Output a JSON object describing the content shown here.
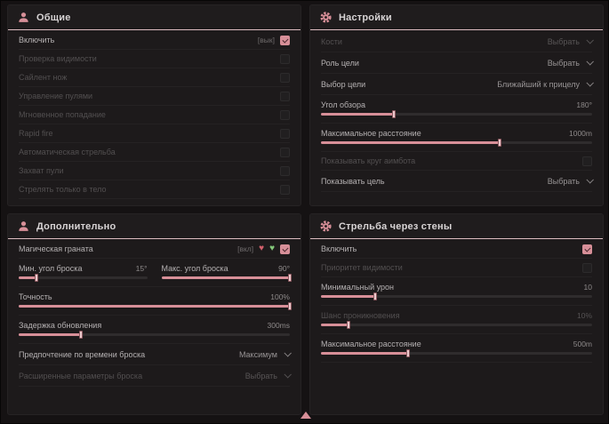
{
  "page": {
    "accent": "#d78f98",
    "background": "#151213",
    "footer_indicator_icon": "up-arrow-icon"
  },
  "panels": [
    {
      "title": "Общие",
      "icon": "person-icon",
      "rows": [
        {
          "type": "toggle",
          "label": "Включить",
          "hotkey": "[вык]",
          "checked": true,
          "enabled": true
        },
        {
          "type": "toggle",
          "label": "Проверка видимости",
          "checked": false,
          "enabled": false
        },
        {
          "type": "toggle",
          "label": "Сайлент нож",
          "checked": false,
          "enabled": false
        },
        {
          "type": "toggle",
          "label": "Управление пулями",
          "checked": false,
          "enabled": false
        },
        {
          "type": "toggle",
          "label": "Мгновенное попадание",
          "checked": false,
          "enabled": false
        },
        {
          "type": "toggle",
          "label": "Rapid fire",
          "checked": false,
          "enabled": false
        },
        {
          "type": "toggle",
          "label": "Автоматическая стрельба",
          "checked": false,
          "enabled": false
        },
        {
          "type": "toggle",
          "label": "Захват пули",
          "checked": false,
          "enabled": false
        },
        {
          "type": "toggle",
          "label": "Стрелять только в тело",
          "checked": false,
          "enabled": false
        }
      ]
    },
    {
      "title": "Настройки",
      "icon": "gear-icon",
      "rows": [
        {
          "type": "select",
          "label": "Кости",
          "value": "Выбрать",
          "enabled": false
        },
        {
          "type": "select",
          "label": "Роль цели",
          "value": "Выбрать",
          "enabled": true
        },
        {
          "type": "select",
          "label": "Выбор цели",
          "value": "Ближайший к прицелу",
          "enabled": true
        },
        {
          "type": "slider",
          "label": "Угол обзора",
          "value": "180°",
          "fill": 27,
          "enabled": true
        },
        {
          "type": "slider",
          "label": "Максимальное расстояние",
          "value": "1000m",
          "fill": 66,
          "enabled": true
        },
        {
          "type": "toggle",
          "label": "Показывать круг аимбота",
          "checked": false,
          "enabled": false
        },
        {
          "type": "select",
          "label": "Показывать цель",
          "value": "Выбрать",
          "enabled": true
        }
      ]
    },
    {
      "title": "Дополнительно",
      "icon": "person-icon",
      "rows": [
        {
          "type": "toggle-icons",
          "label": "Магическая граната",
          "hotkey": "[вкл]",
          "icons": [
            "broken-heart-icon",
            "green-heart-icon"
          ],
          "checked": true,
          "enabled": true
        },
        {
          "type": "dual-slider",
          "left": {
            "label": "Мин. угол броска",
            "value": "15°",
            "fill": 14
          },
          "right": {
            "label": "Макс. угол броска",
            "value": "90°",
            "fill": 100
          }
        },
        {
          "type": "slider",
          "label": "Точность",
          "value": "100%",
          "fill": 100,
          "enabled": true
        },
        {
          "type": "slider",
          "label": "Задержка обновления",
          "value": "300ms",
          "fill": 23,
          "enabled": true
        },
        {
          "type": "select",
          "label": "Предпочтение по времени броска",
          "value": "Максимум",
          "enabled": true
        },
        {
          "type": "select",
          "label": "Расширенные параметры броска",
          "value": "Выбрать",
          "enabled": false
        }
      ]
    },
    {
      "title": "Стрельба через стены",
      "icon": "gear-icon",
      "rows": [
        {
          "type": "toggle",
          "label": "Включить",
          "checked": true,
          "enabled": true
        },
        {
          "type": "toggle",
          "label": "Приоритет видимости",
          "checked": false,
          "enabled": false
        },
        {
          "type": "slider",
          "label": "Минимальный урон",
          "value": "10",
          "fill": 20,
          "enabled": true
        },
        {
          "type": "slider",
          "label": "Шанс проникновения",
          "value": "10%",
          "fill": 10,
          "enabled": false
        },
        {
          "type": "slider",
          "label": "Максимальное расстояние",
          "value": "500m",
          "fill": 32,
          "enabled": true
        }
      ]
    }
  ]
}
